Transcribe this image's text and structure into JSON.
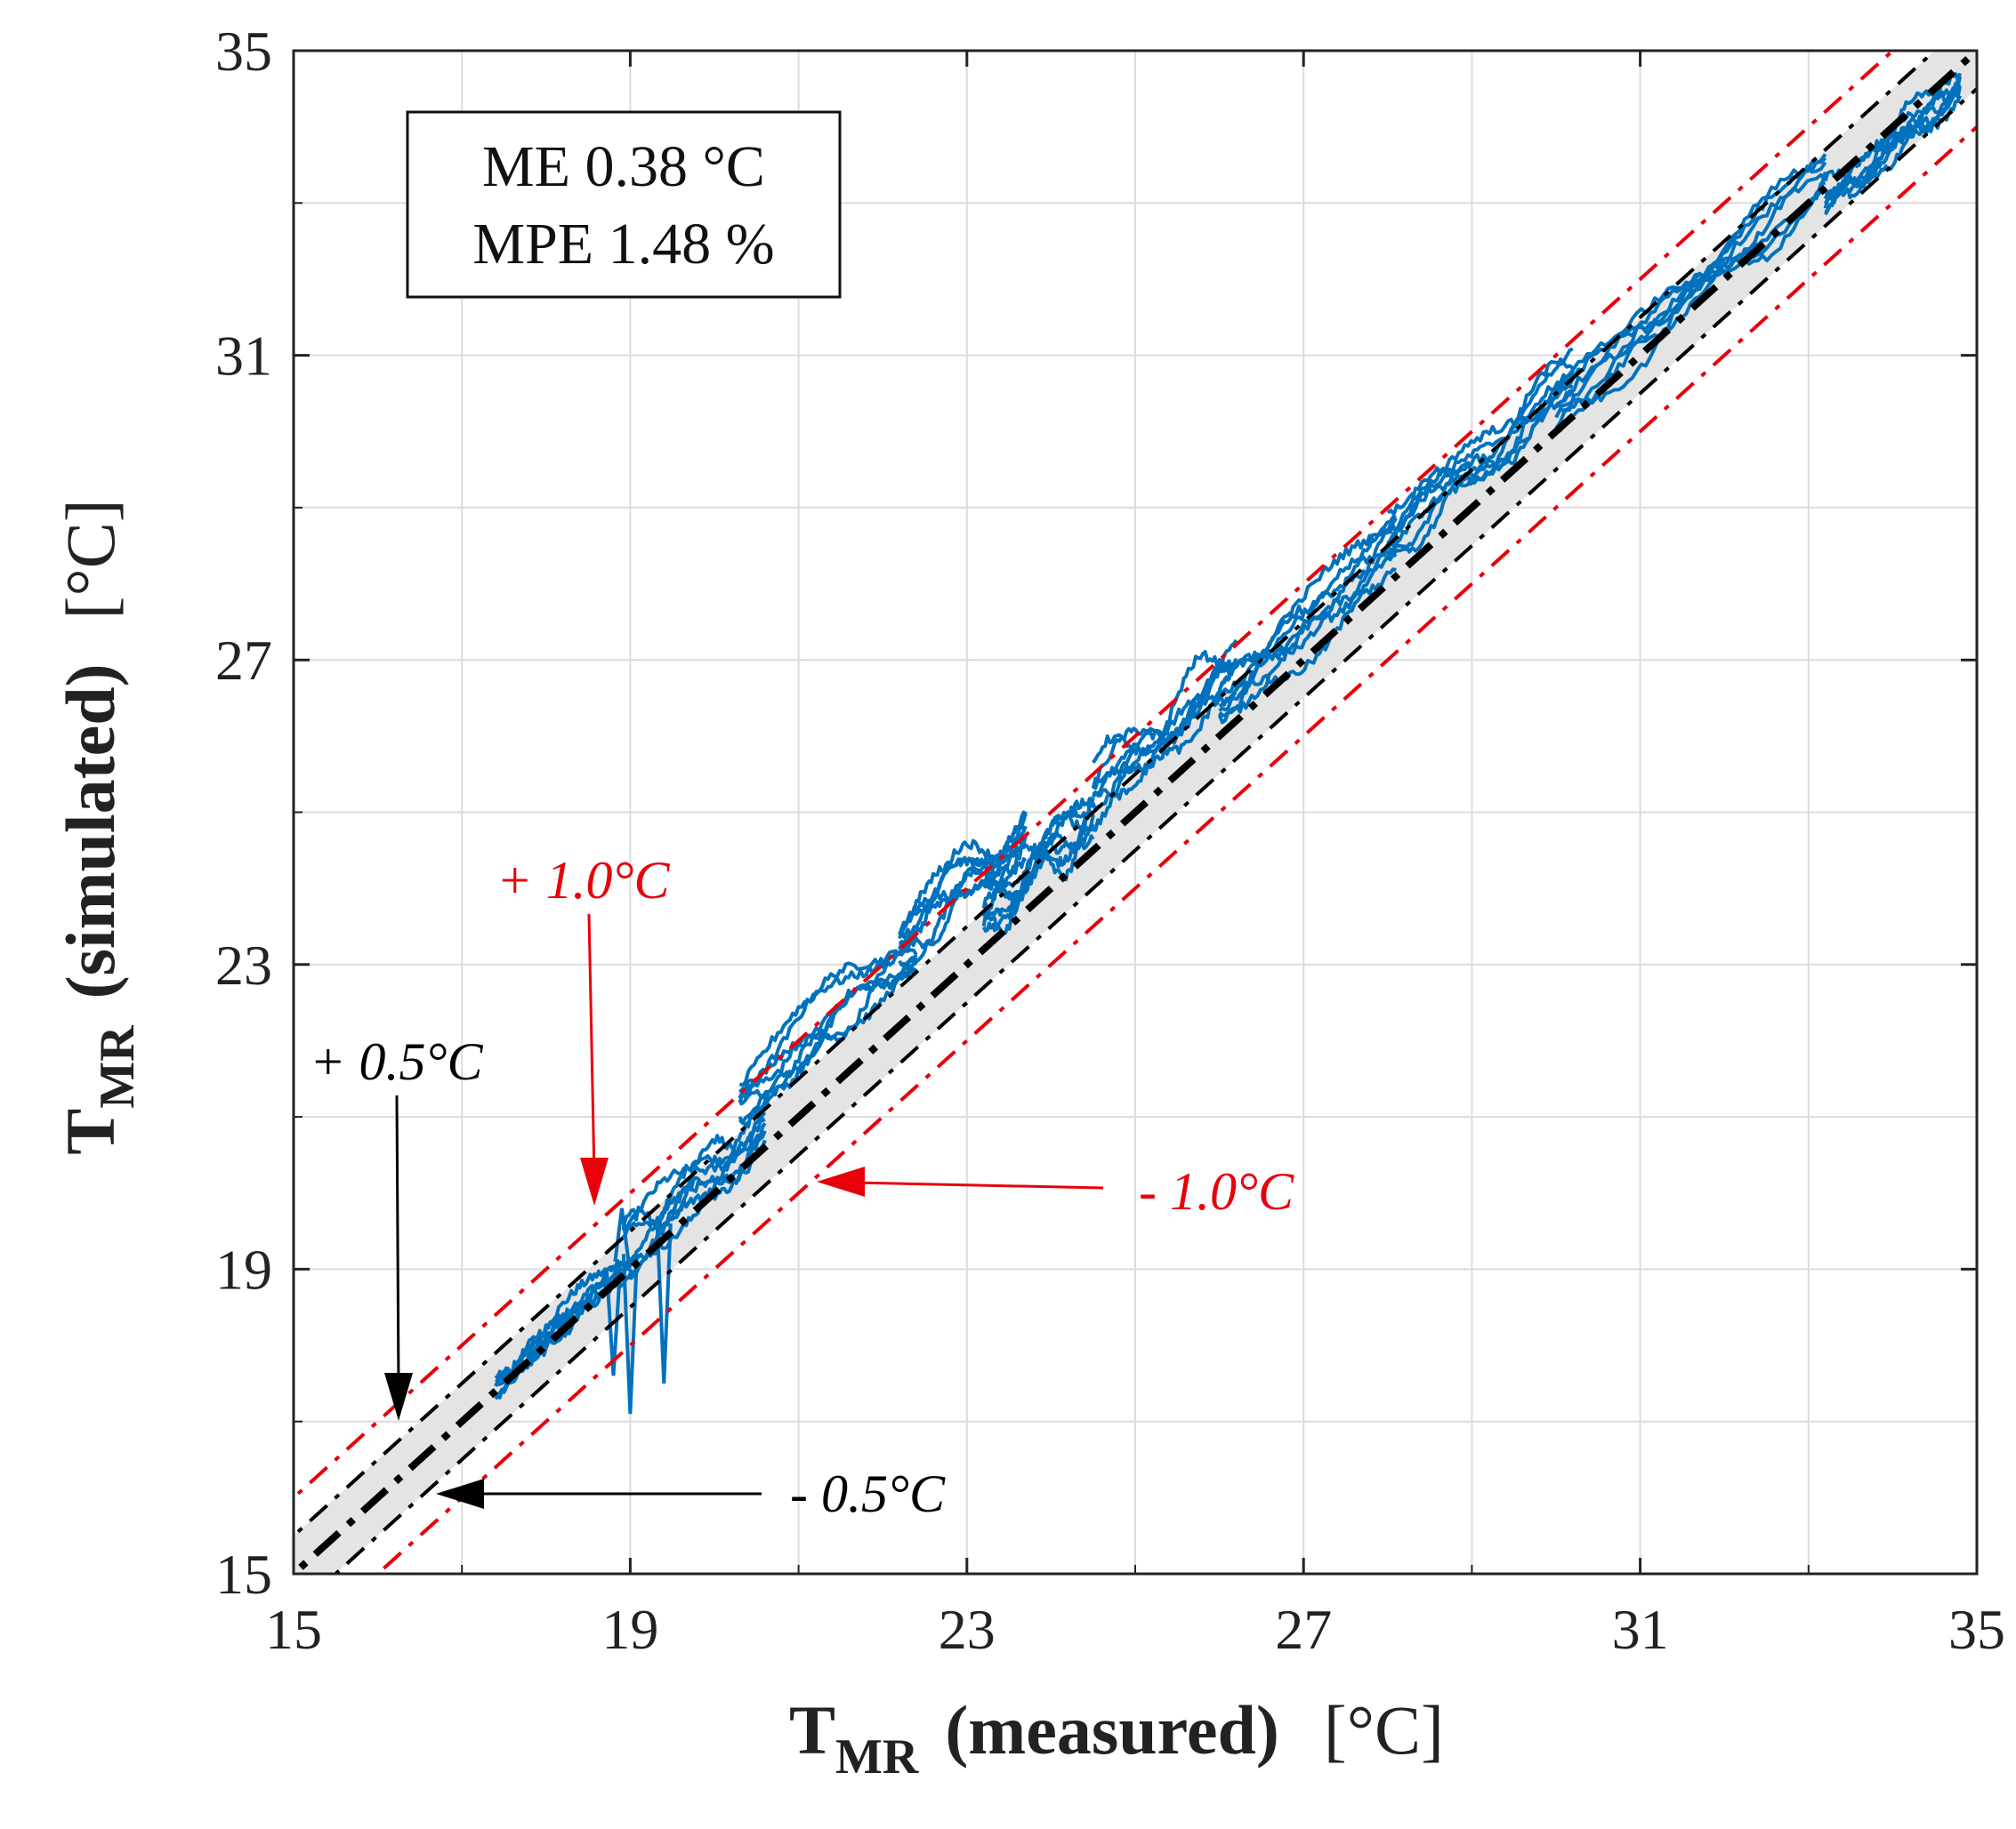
{
  "chart_data": {
    "type": "scatter",
    "title": "",
    "xlabel": {
      "main": "T",
      "sub": "MR",
      "qualifier": "(measured)",
      "unit": "[°C]"
    },
    "ylabel": {
      "main": "T",
      "sub": "MR",
      "qualifier": "(simulated)",
      "unit": "[°C]"
    },
    "xlim": [
      15,
      35
    ],
    "ylim": [
      15,
      35
    ],
    "x_ticks": [
      15,
      19,
      23,
      27,
      31,
      35
    ],
    "y_ticks": [
      15,
      19,
      23,
      27,
      31,
      35
    ],
    "minor_grid_step": 2,
    "grid": true,
    "stats": {
      "me": "ME 0.38 °C",
      "mpe": "MPE 1.48 %"
    },
    "band": {
      "offset": 0.5,
      "color": "#e4e4e4"
    },
    "reference_lines": [
      {
        "name": "identity",
        "offset": 0,
        "color": "#000000",
        "style": "dash-dot-bold"
      },
      {
        "name": "plus-0.5",
        "offset": 0.5,
        "color": "#000000",
        "style": "dash-dot"
      },
      {
        "name": "minus-0.5",
        "offset": -0.5,
        "color": "#000000",
        "style": "dash-dot"
      },
      {
        "name": "plus-1.0",
        "offset": 1.0,
        "color": "#e8000b",
        "style": "dash-dot"
      },
      {
        "name": "minus-1.0",
        "offset": -1.0,
        "color": "#e8000b",
        "style": "dash-dot"
      }
    ],
    "annotations": [
      {
        "name": "plus-1-label",
        "text": "+ 1.0°C",
        "color": "#e8000b"
      },
      {
        "name": "minus-1-label",
        "text": "- 1.0°C",
        "color": "#e8000b"
      },
      {
        "name": "plus-05-label",
        "text": "+ 0.5°C",
        "color": "#000000"
      },
      {
        "name": "minus-05-label",
        "text": "- 0.5°C",
        "color": "#000000"
      }
    ],
    "series": [
      {
        "name": "simulated-vs-measured",
        "color": "#0072bd",
        "clusters": [
          {
            "x0": 17.4,
            "x1": 18.9,
            "offset": 0.1,
            "spread": 0.3
          },
          {
            "x0": 18.9,
            "x1": 20.6,
            "offset": 0.3,
            "spread": 0.5
          },
          {
            "x0": 20.3,
            "x1": 22.4,
            "offset": 1.0,
            "spread": 0.5
          },
          {
            "x0": 22.2,
            "x1": 23.7,
            "offset": 1.05,
            "spread": 0.55
          },
          {
            "x0": 23.2,
            "x1": 24.5,
            "offset": 0.6,
            "spread": 0.6
          },
          {
            "x0": 24.5,
            "x1": 26.2,
            "offset": 0.7,
            "spread": 0.55
          },
          {
            "x0": 26.0,
            "x1": 28.1,
            "offset": 0.4,
            "spread": 0.6
          },
          {
            "x0": 28.0,
            "x1": 30.2,
            "offset": 0.55,
            "spread": 0.55
          },
          {
            "x0": 30.0,
            "x1": 33.2,
            "offset": 0.3,
            "spread": 0.55
          },
          {
            "x0": 33.2,
            "x1": 34.8,
            "offset": -0.25,
            "spread": 0.45
          }
        ],
        "spikes": [
          {
            "x": 19.0,
            "y": 17.1
          },
          {
            "x": 18.8,
            "y": 17.6
          },
          {
            "x": 19.4,
            "y": 17.5
          },
          {
            "x": 18.9,
            "y": 19.8
          }
        ]
      }
    ]
  }
}
